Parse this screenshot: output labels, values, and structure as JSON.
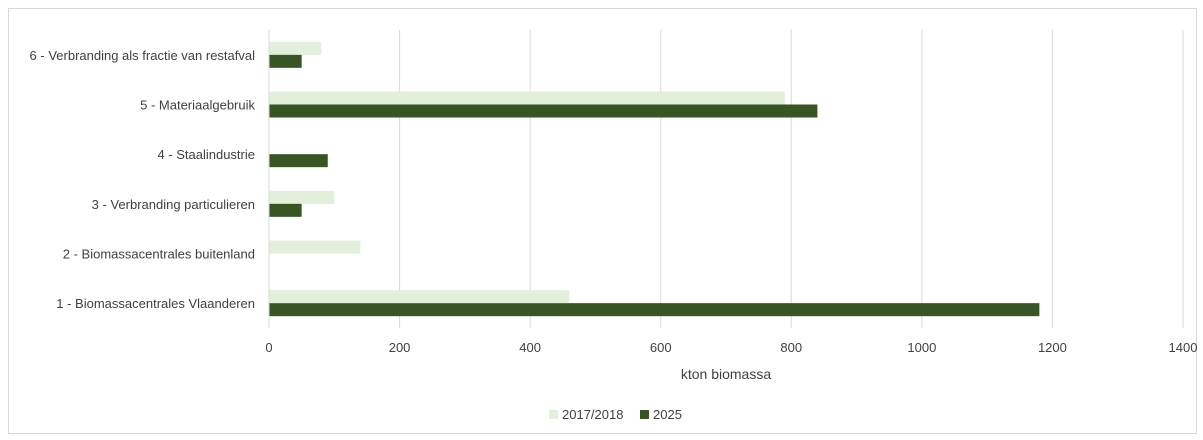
{
  "chart_data": {
    "type": "bar",
    "orientation": "horizontal",
    "categories": [
      "1 - Biomassacentrales Vlaanderen",
      "2 - Biomassacentrales buitenland",
      "3 - Verbranding particulieren",
      "4 - Staalindustrie",
      "5 - Materiaalgebruik",
      "6 - Verbranding als fractie van restafval"
    ],
    "series": [
      {
        "name": "2017/2018",
        "values": [
          460,
          140,
          100,
          0,
          790,
          80
        ]
      },
      {
        "name": "2025",
        "values": [
          1180,
          0,
          50,
          90,
          840,
          50
        ]
      }
    ],
    "xlabel": "kton biomassa",
    "ylabel": "",
    "xlim": [
      0,
      1400
    ],
    "xticks": [
      0,
      200,
      400,
      600,
      800,
      1000,
      1200,
      1400
    ],
    "grid": true,
    "legend_position": "bottom",
    "colors": {
      "2017/2018": "#e2efda",
      "2025": "#375623"
    }
  }
}
